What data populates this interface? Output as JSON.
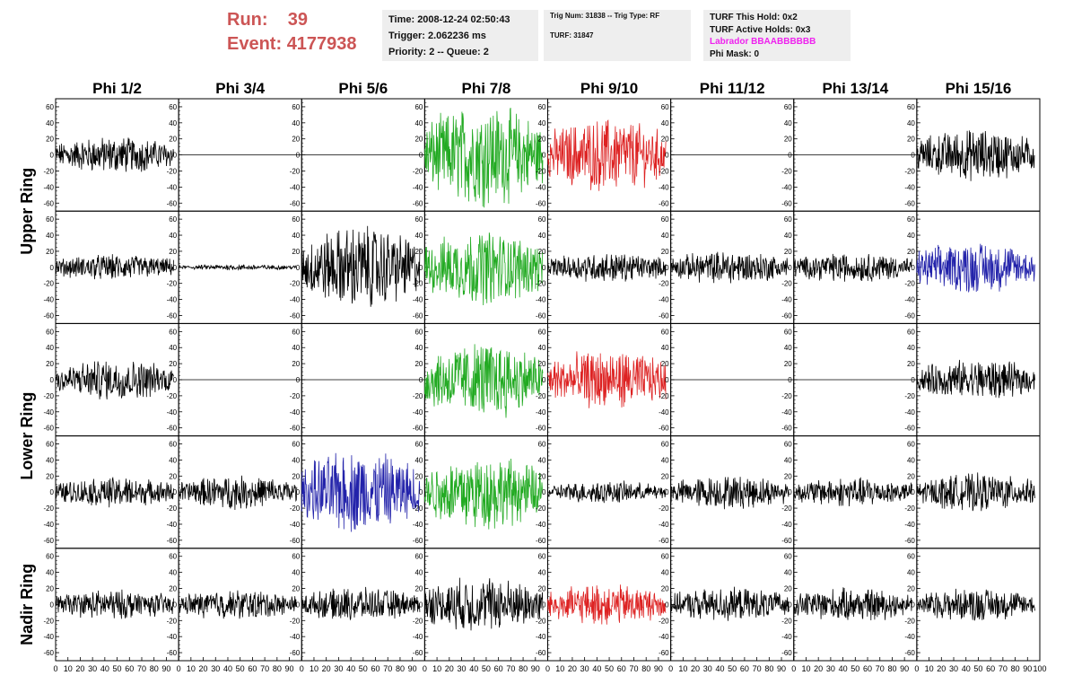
{
  "header": {
    "run_label": "Run:",
    "run_value": "39",
    "event_label": "Event:",
    "event_value": "4177938",
    "time": "Time: 2008-12-24 02:50:43",
    "trigger": "Trigger: 2.062236 ms",
    "priority": "Priority: 2 -- Queue: 2",
    "trig_num": "Trig Num: 31838 -- Trig Type: RF",
    "turf": "TURF: 31847",
    "turf_this_hold": "TURF This Hold: 0x2",
    "turf_active_holds": "TURF Active Holds: 0x3",
    "labrador": "Labrador BBAABBBBBB",
    "phi_mask": "Phi Mask: 0"
  },
  "grid": {
    "columns": [
      "Phi 1/2",
      "Phi 3/4",
      "Phi 5/6",
      "Phi 7/8",
      "Phi 9/10",
      "Phi 11/12",
      "Phi 13/14",
      "Phi 15/16"
    ],
    "rows": [
      "Upper Ring",
      "Lower Ring",
      "Nadir Ring"
    ]
  },
  "colors": {
    "run_event": "#cc5555",
    "labrador": "#ee22ee",
    "trace_black": "#000000",
    "trace_green": "#22aa22",
    "trace_red": "#dd2222",
    "trace_blue": "#2222aa"
  },
  "chart_data": {
    "type": "line",
    "panels_rows": 5,
    "panels_cols": 8,
    "xlim": [
      0,
      100
    ],
    "ylim": [
      -70,
      70
    ],
    "y_ticks": [
      -60,
      -40,
      -20,
      0,
      20,
      40,
      60
    ],
    "x_ticks": [
      0,
      10,
      20,
      30,
      40,
      50,
      60,
      70,
      80,
      90,
      100
    ],
    "panel_amplitude": [
      [
        20,
        0,
        0,
        55,
        40,
        0,
        0,
        28
      ],
      [
        14,
        3,
        45,
        40,
        16,
        18,
        16,
        28
      ],
      [
        22,
        0,
        0,
        42,
        32,
        0,
        0,
        22
      ],
      [
        16,
        18,
        45,
        40,
        12,
        18,
        16,
        20
      ],
      [
        16,
        16,
        18,
        30,
        22,
        18,
        18,
        18
      ]
    ],
    "panel_color": [
      [
        "black",
        "black",
        "black",
        "green",
        "red",
        "black",
        "black",
        "black"
      ],
      [
        "black",
        "black",
        "black",
        "green",
        "black",
        "black",
        "black",
        "blue"
      ],
      [
        "black",
        "black",
        "black",
        "green",
        "red",
        "black",
        "black",
        "black"
      ],
      [
        "black",
        "black",
        "blue",
        "green",
        "black",
        "black",
        "black",
        "black"
      ],
      [
        "black",
        "black",
        "black",
        "black",
        "red",
        "black",
        "black",
        "black"
      ]
    ]
  }
}
